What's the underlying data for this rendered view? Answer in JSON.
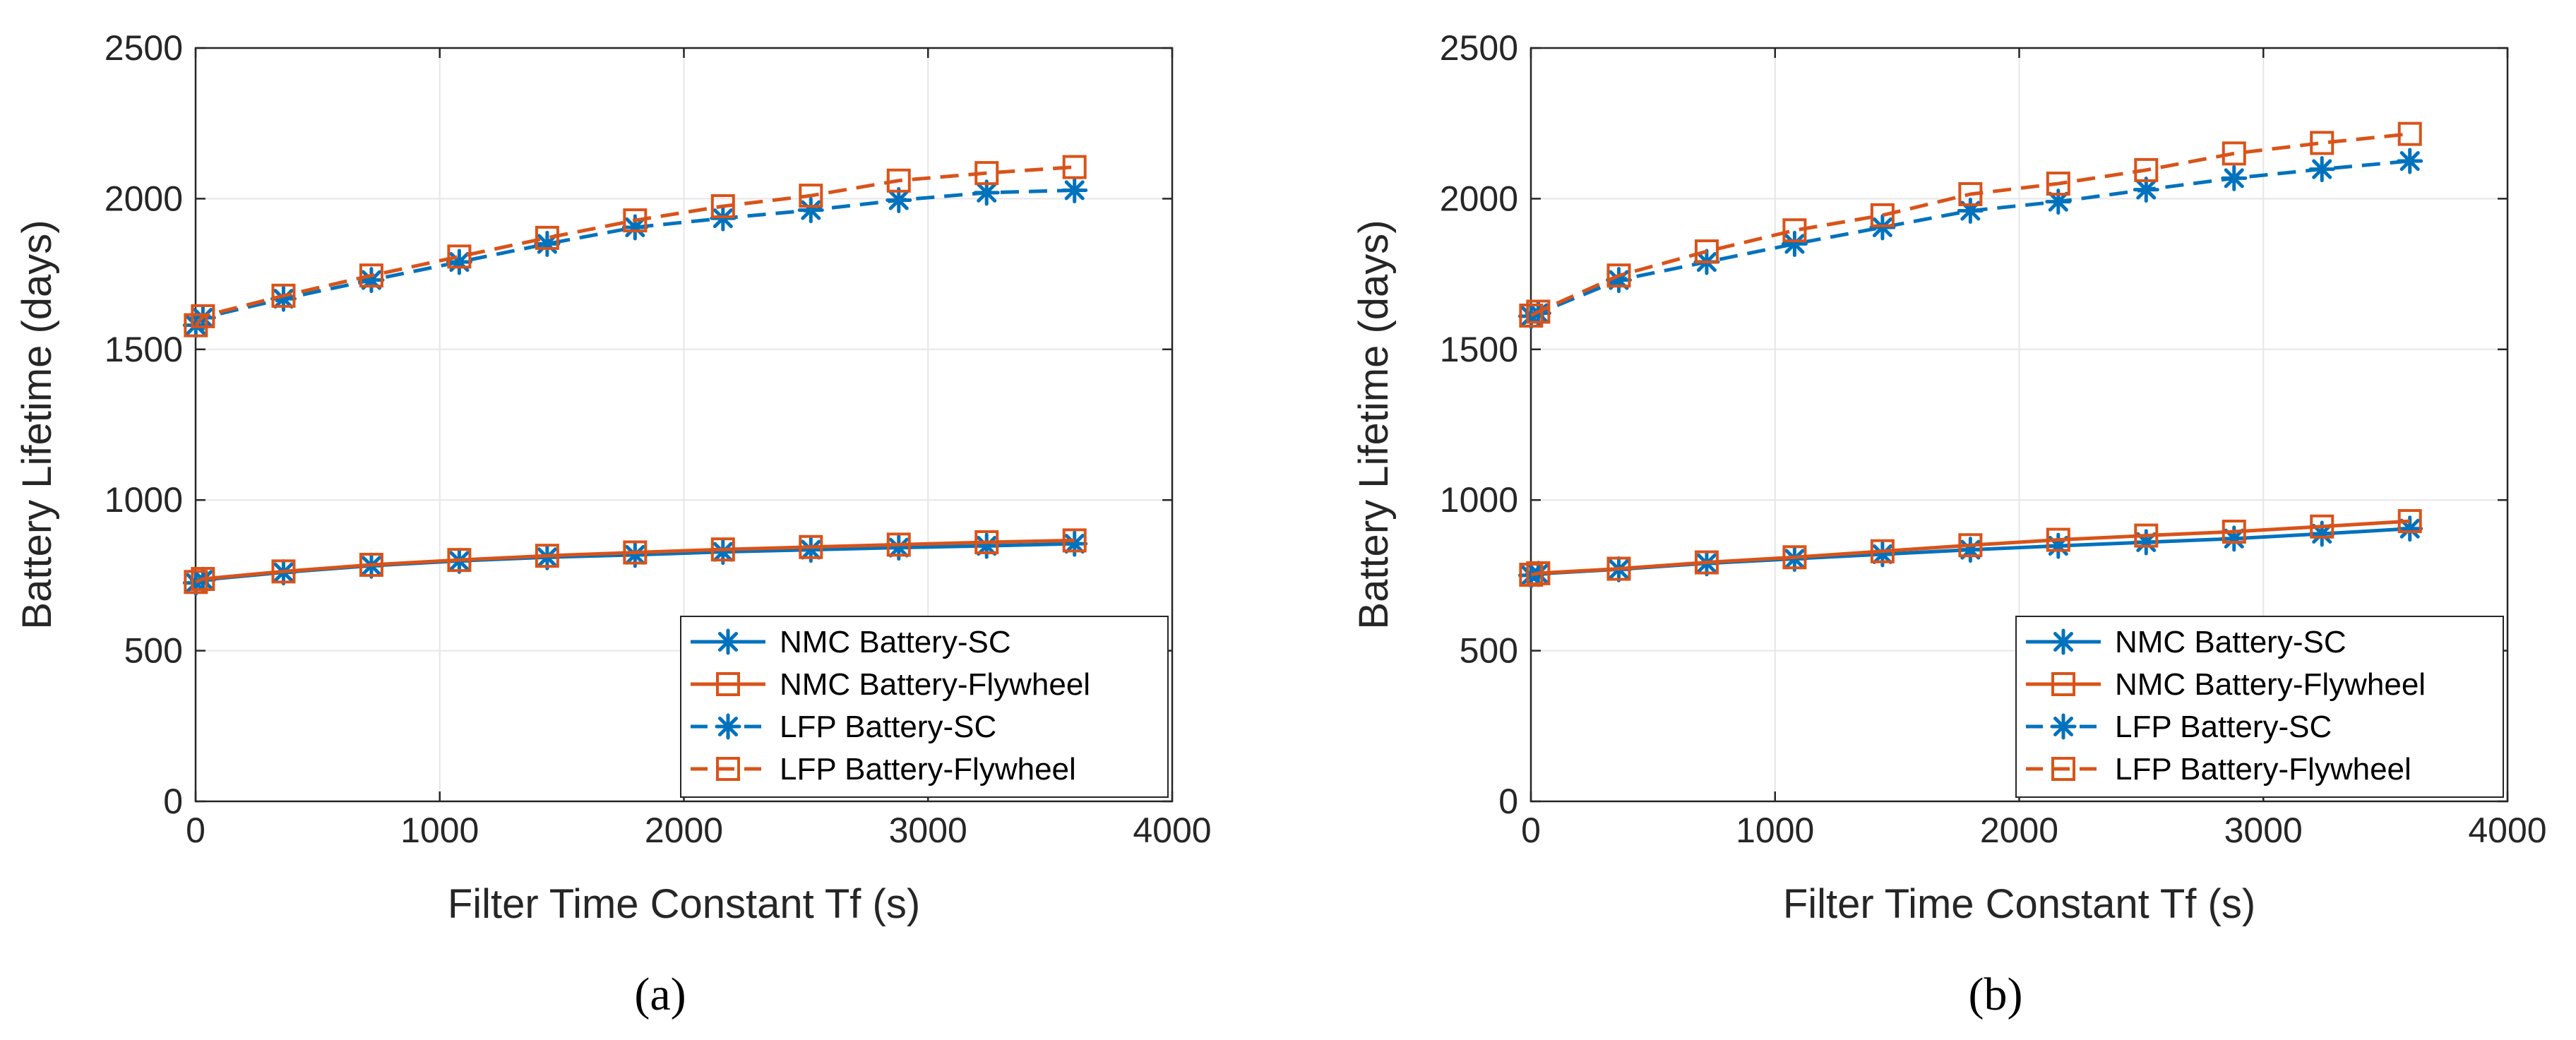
{
  "colors": {
    "blue": "#0072BD",
    "orange": "#D95319",
    "grid": "#e6e6e6",
    "axis": "#262626"
  },
  "chart_data": [
    {
      "type": "line",
      "panel": "a",
      "caption": "(a)",
      "xlabel": "Filter Time Constant Tf (s)",
      "ylabel": "Battery Lifetime (days)",
      "xlim": [
        0,
        4000
      ],
      "ylim": [
        0,
        2500
      ],
      "xticks": [
        "0",
        "1000",
        "2000",
        "3000",
        "4000"
      ],
      "yticks": [
        "0",
        "500",
        "1000",
        "1500",
        "2000",
        "2500"
      ],
      "grid": true,
      "legend": "bottom-right",
      "x": [
        1,
        30,
        360,
        720,
        1080,
        1440,
        1800,
        2160,
        2520,
        2880,
        3240,
        3600
      ],
      "series": [
        {
          "name": "NMC Battery-SC",
          "color": "blue",
          "dash": "solid",
          "marker": "star",
          "values": [
            725,
            735,
            760,
            782,
            798,
            810,
            818,
            828,
            835,
            842,
            848,
            855
          ]
        },
        {
          "name": "NMC Battery-Flywheel",
          "color": "orange",
          "dash": "solid",
          "marker": "square",
          "values": [
            728,
            738,
            763,
            785,
            801,
            815,
            826,
            836,
            844,
            852,
            860,
            866
          ]
        },
        {
          "name": "LFP Battery-SC",
          "color": "blue",
          "dash": "dashed",
          "marker": "star",
          "values": [
            1580,
            1605,
            1668,
            1730,
            1790,
            1850,
            1905,
            1935,
            1962,
            1995,
            2020,
            2028
          ]
        },
        {
          "name": "LFP Battery-Flywheel",
          "color": "orange",
          "dash": "dashed",
          "marker": "square",
          "values": [
            1580,
            1610,
            1678,
            1745,
            1808,
            1870,
            1928,
            1975,
            2010,
            2060,
            2085,
            2105
          ]
        }
      ]
    },
    {
      "type": "line",
      "panel": "b",
      "caption": "(b)",
      "xlabel": "Filter Time Constant Tf (s)",
      "ylabel": "Battery Lifetime (days)",
      "xlim": [
        0,
        4000
      ],
      "ylim": [
        0,
        2500
      ],
      "xticks": [
        "0",
        "1000",
        "2000",
        "3000",
        "4000"
      ],
      "yticks": [
        "0",
        "500",
        "1000",
        "1500",
        "2000",
        "2500"
      ],
      "grid": true,
      "legend": "bottom-right",
      "x": [
        1,
        30,
        360,
        720,
        1080,
        1440,
        1800,
        2160,
        2520,
        2880,
        3240,
        3600
      ],
      "series": [
        {
          "name": "NMC Battery-SC",
          "color": "blue",
          "dash": "solid",
          "marker": "star",
          "values": [
            750,
            755,
            770,
            790,
            805,
            820,
            835,
            848,
            860,
            872,
            888,
            905
          ]
        },
        {
          "name": "NMC Battery-Flywheel",
          "color": "orange",
          "dash": "solid",
          "marker": "square",
          "values": [
            752,
            757,
            772,
            793,
            810,
            830,
            850,
            868,
            882,
            895,
            912,
            930
          ]
        },
        {
          "name": "LFP Battery-SC",
          "color": "blue",
          "dash": "dashed",
          "marker": "star",
          "values": [
            1610,
            1620,
            1730,
            1790,
            1850,
            1905,
            1960,
            1990,
            2030,
            2068,
            2098,
            2125
          ]
        },
        {
          "name": "LFP Battery-Flywheel",
          "color": "orange",
          "dash": "dashed",
          "marker": "square",
          "values": [
            1612,
            1625,
            1745,
            1825,
            1895,
            1945,
            2015,
            2050,
            2095,
            2150,
            2185,
            2215
          ]
        }
      ]
    }
  ]
}
